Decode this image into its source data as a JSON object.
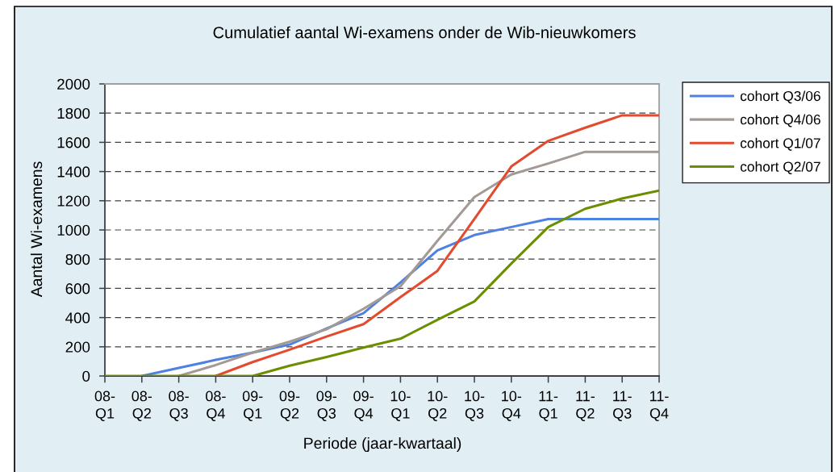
{
  "chart_data": {
    "type": "line",
    "title": "Cumulatief aantal Wi-examens onder de Wib-nieuwkomers",
    "xlabel": "Periode (jaar-kwartaal)",
    "ylabel": "Aantal Wi-examens",
    "categories": [
      "08-\nQ1",
      "08-\nQ2",
      "08-\nQ3",
      "08-\nQ4",
      "09-\nQ1",
      "09-\nQ2",
      "09-\nQ3",
      "09-\nQ4",
      "10-\nQ1",
      "10-\nQ2",
      "10-\nQ3",
      "10-\nQ4",
      "11-\nQ1",
      "11-\nQ2",
      "11-\nQ3",
      "11-\nQ4"
    ],
    "series": [
      {
        "name": "cohort Q3/06",
        "color": "#4f81e0",
        "values": [
          null,
          0,
          55,
          110,
          160,
          215,
          325,
          430,
          640,
          860,
          965,
          1020,
          1075,
          1075,
          1075,
          1075
        ]
      },
      {
        "name": "cohort Q4/06",
        "color": "#a39a95",
        "values": [
          null,
          null,
          0,
          75,
          160,
          235,
          320,
          460,
          615,
          925,
          1225,
          1380,
          1455,
          1535,
          1535,
          1535
        ]
      },
      {
        "name": "cohort Q1/07",
        "color": "#e34a2e",
        "values": [
          null,
          null,
          null,
          0,
          95,
          180,
          270,
          355,
          540,
          720,
          1075,
          1435,
          1610,
          1700,
          1785,
          1785
        ]
      },
      {
        "name": "cohort Q2/07",
        "color": "#6a8f00",
        "values": [
          0,
          0,
          0,
          0,
          0,
          70,
          130,
          195,
          255,
          385,
          510,
          770,
          1020,
          1145,
          1215,
          1270
        ]
      }
    ],
    "ylim": [
      0,
      2000
    ],
    "yticks": [
      0,
      200,
      400,
      600,
      800,
      1000,
      1200,
      1400,
      1600,
      1800,
      2000
    ],
    "grid": "y",
    "legend": "top right",
    "line_style": "solid"
  }
}
